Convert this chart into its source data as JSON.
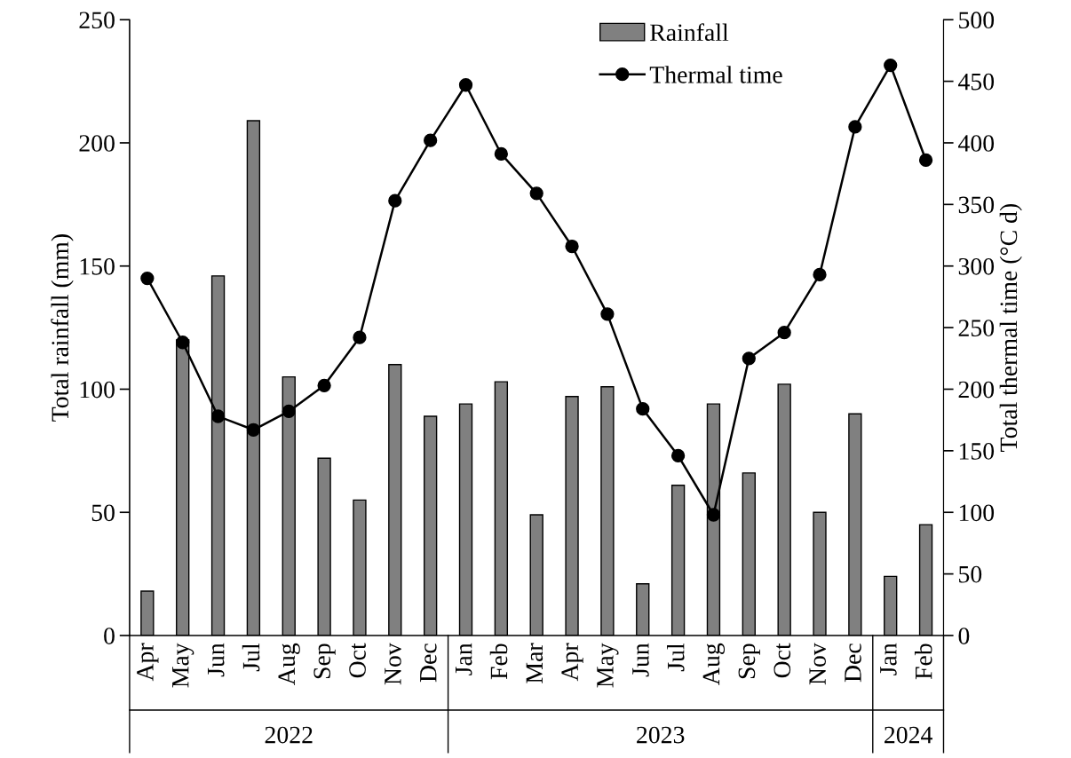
{
  "chart_data": {
    "type": "bar",
    "categories": [
      "Apr",
      "May",
      "Jun",
      "Jul",
      "Aug",
      "Sep",
      "Oct",
      "Nov",
      "Dec",
      "Jan",
      "Feb",
      "Mar",
      "Apr",
      "May",
      "Jun",
      "Jul",
      "Aug",
      "Sep",
      "Oct",
      "Nov",
      "Dec",
      "Jan",
      "Feb"
    ],
    "series": [
      {
        "name": "Rainfall",
        "color": "#808080",
        "values": [
          18,
          120,
          146,
          209,
          105,
          72,
          55,
          110,
          89,
          94,
          103,
          49,
          97,
          101,
          21,
          61,
          94,
          66,
          102,
          50,
          90,
          24,
          45
        ]
      },
      {
        "name": "Thermal time",
        "type": "line",
        "axis": "y2",
        "color": "#000000",
        "marker": "circle",
        "values": [
          290,
          238,
          178,
          167,
          182,
          203,
          242,
          353,
          402,
          447,
          391,
          359,
          316,
          261,
          184,
          146,
          98,
          225,
          246,
          293,
          413,
          463,
          386
        ]
      }
    ],
    "ylabel": "Total rainfall (mm)",
    "y2label": "Total thermal time (°C d)",
    "ylim": [
      0,
      250
    ],
    "yticks": [
      0,
      50,
      100,
      150,
      200,
      250
    ],
    "y2lim": [
      0,
      500
    ],
    "y2ticks": [
      0,
      50,
      100,
      150,
      200,
      250,
      300,
      350,
      400,
      450,
      500
    ],
    "annotations": [
      "2022",
      "2023",
      "2024"
    ],
    "legend": "top right",
    "grid": false
  }
}
